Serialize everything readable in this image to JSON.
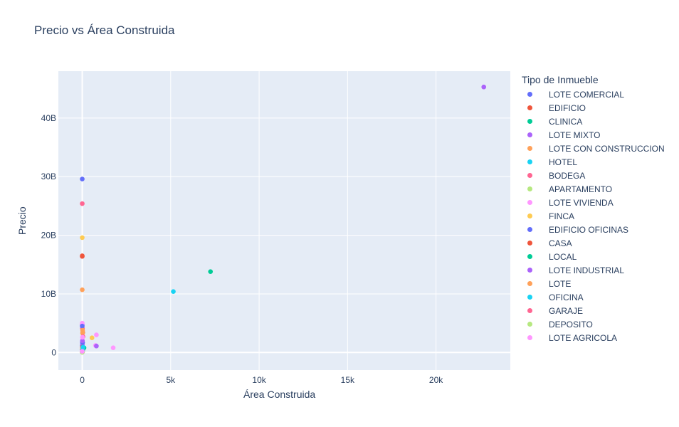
{
  "chart_data": {
    "type": "scatter",
    "title": "Precio vs Área Construida",
    "xlabel": "Área Construida",
    "ylabel": "Precio",
    "xlim": [
      -1350,
      24200
    ],
    "ylim": [
      -3000000000,
      48000000000
    ],
    "xticks": [
      {
        "value": 0,
        "label": "0"
      },
      {
        "value": 5000,
        "label": "5k"
      },
      {
        "value": 10000,
        "label": "10k"
      },
      {
        "value": 15000,
        "label": "15k"
      },
      {
        "value": 20000,
        "label": "20k"
      }
    ],
    "yticks": [
      {
        "value": 0,
        "label": "0"
      },
      {
        "value": 10000000000,
        "label": "10B"
      },
      {
        "value": 20000000000,
        "label": "20B"
      },
      {
        "value": 30000000000,
        "label": "30B"
      },
      {
        "value": 40000000000,
        "label": "40B"
      }
    ],
    "grid": true,
    "legend_title": "Tipo de Inmueble",
    "legend_placement": "right",
    "series": [
      {
        "name": "LOTE COMERCIAL",
        "color": "#636efa",
        "points": [
          [
            0,
            29600000000
          ],
          [
            10,
            1800000000
          ],
          [
            5,
            1200000000
          ],
          [
            20,
            600000000
          ]
        ]
      },
      {
        "name": "EDIFICIO",
        "color": "#EF553B",
        "points": [
          [
            0,
            16500000000
          ],
          [
            30,
            3400000000
          ]
        ]
      },
      {
        "name": "CLINICA",
        "color": "#00cc96",
        "points": [
          [
            7250,
            13800000000
          ]
        ]
      },
      {
        "name": "LOTE MIXTO",
        "color": "#ab63fa",
        "points": [
          [
            22700,
            45300000000
          ],
          [
            0,
            4700000000
          ],
          [
            10,
            1500000000
          ]
        ]
      },
      {
        "name": "LOTE CON CONSTRUCCION",
        "color": "#FFA15A",
        "points": [
          [
            0,
            10700000000
          ],
          [
            20,
            3300000000
          ]
        ]
      },
      {
        "name": "HOTEL",
        "color": "#19d3f3",
        "points": [
          [
            5150,
            10400000000
          ],
          [
            20,
            700000000
          ]
        ]
      },
      {
        "name": "BODEGA",
        "color": "#FF6692",
        "points": [
          [
            0,
            25400000000
          ],
          [
            10,
            4100000000
          ],
          [
            40,
            2700000000
          ]
        ]
      },
      {
        "name": "APARTAMENTO",
        "color": "#B6E880",
        "points": [
          [
            0,
            200000000
          ],
          [
            10,
            300000000
          ],
          [
            20,
            150000000
          ],
          [
            30,
            400000000
          ]
        ]
      },
      {
        "name": "LOTE VIVIENDA",
        "color": "#FF97FF",
        "points": [
          [
            800,
            3000000000
          ],
          [
            750,
            1200000000
          ],
          [
            1750,
            800000000
          ],
          [
            0,
            5000000000
          ]
        ]
      },
      {
        "name": "FINCA",
        "color": "#FECB52",
        "points": [
          [
            0,
            19600000000
          ],
          [
            550,
            2500000000
          ]
        ]
      },
      {
        "name": "EDIFICIO OFICINAS",
        "color": "#636efa",
        "points": [
          [
            0,
            4500000000
          ],
          [
            20,
            1700000000
          ]
        ]
      },
      {
        "name": "CASA",
        "color": "#EF553B",
        "points": [
          [
            0,
            16400000000
          ],
          [
            10,
            900000000
          ],
          [
            0,
            500000000
          ]
        ]
      },
      {
        "name": "LOCAL",
        "color": "#00cc96",
        "points": [
          [
            100,
            800000000
          ],
          [
            20,
            400000000
          ]
        ]
      },
      {
        "name": "LOTE INDUSTRIAL",
        "color": "#ab63fa",
        "points": [
          [
            800,
            1100000000
          ],
          [
            10,
            2000000000
          ]
        ]
      },
      {
        "name": "LOTE",
        "color": "#FFA15A",
        "points": [
          [
            20,
            3800000000
          ],
          [
            5,
            600000000
          ]
        ]
      },
      {
        "name": "OFICINA",
        "color": "#19d3f3",
        "points": [
          [
            10,
            400000000
          ],
          [
            40,
            900000000
          ],
          [
            0,
            100000000
          ]
        ]
      },
      {
        "name": "GARAJE",
        "color": "#FF6692",
        "points": [
          [
            0,
            50000000
          ],
          [
            0,
            100000000
          ]
        ]
      },
      {
        "name": "DEPOSITO",
        "color": "#B6E880",
        "points": [
          [
            0,
            30000000
          ]
        ]
      },
      {
        "name": "LOTE AGRICOLA",
        "color": "#FF97FF",
        "points": [
          [
            10,
            2600000000
          ],
          [
            0,
            200000000
          ]
        ]
      }
    ]
  }
}
